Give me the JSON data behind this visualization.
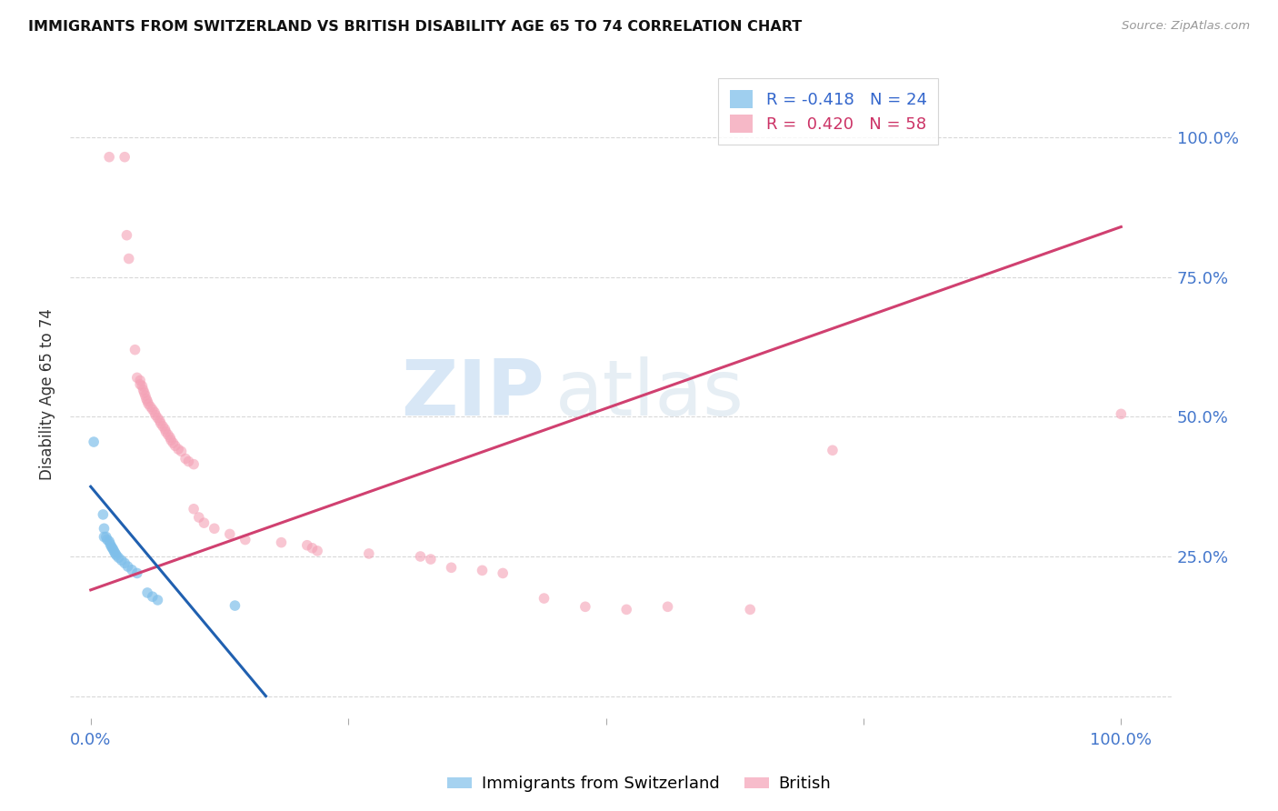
{
  "title": "IMMIGRANTS FROM SWITZERLAND VS BRITISH DISABILITY AGE 65 TO 74 CORRELATION CHART",
  "source": "Source: ZipAtlas.com",
  "ylabel": "Disability Age 65 to 74",
  "right_ytick_labels": [
    "100.0%",
    "75.0%",
    "50.0%",
    "25.0%"
  ],
  "right_ytick_positions": [
    1.0,
    0.75,
    0.5,
    0.25
  ],
  "watermark_part1": "ZIP",
  "watermark_part2": "atlas",
  "swiss_color": "#7fbfea",
  "british_color": "#f4a0b5",
  "swiss_line_color": "#2060b0",
  "british_line_color": "#d04070",
  "background_color": "#ffffff",
  "grid_color": "#d8d8d8",
  "title_color": "#111111",
  "axis_label_color": "#4477cc",
  "marker_size": 70,
  "swiss_points": [
    [
      0.003,
      0.455
    ],
    [
      0.012,
      0.325
    ],
    [
      0.013,
      0.3
    ],
    [
      0.013,
      0.285
    ],
    [
      0.015,
      0.285
    ],
    [
      0.016,
      0.28
    ],
    [
      0.018,
      0.277
    ],
    [
      0.019,
      0.272
    ],
    [
      0.02,
      0.268
    ],
    [
      0.021,
      0.265
    ],
    [
      0.022,
      0.262
    ],
    [
      0.023,
      0.258
    ],
    [
      0.024,
      0.255
    ],
    [
      0.025,
      0.252
    ],
    [
      0.027,
      0.248
    ],
    [
      0.03,
      0.243
    ],
    [
      0.033,
      0.238
    ],
    [
      0.036,
      0.232
    ],
    [
      0.04,
      0.226
    ],
    [
      0.045,
      0.22
    ],
    [
      0.055,
      0.185
    ],
    [
      0.06,
      0.178
    ],
    [
      0.065,
      0.172
    ],
    [
      0.14,
      0.162
    ]
  ],
  "british_points": [
    [
      0.018,
      0.965
    ],
    [
      0.033,
      0.965
    ],
    [
      0.035,
      0.825
    ],
    [
      0.037,
      0.783
    ],
    [
      0.043,
      0.62
    ],
    [
      0.045,
      0.57
    ],
    [
      0.048,
      0.565
    ],
    [
      0.048,
      0.558
    ],
    [
      0.05,
      0.555
    ],
    [
      0.051,
      0.548
    ],
    [
      0.052,
      0.543
    ],
    [
      0.053,
      0.538
    ],
    [
      0.054,
      0.532
    ],
    [
      0.055,
      0.528
    ],
    [
      0.056,
      0.523
    ],
    [
      0.058,
      0.518
    ],
    [
      0.06,
      0.513
    ],
    [
      0.062,
      0.508
    ],
    [
      0.063,
      0.503
    ],
    [
      0.065,
      0.498
    ],
    [
      0.067,
      0.493
    ],
    [
      0.068,
      0.488
    ],
    [
      0.07,
      0.483
    ],
    [
      0.072,
      0.478
    ],
    [
      0.073,
      0.473
    ],
    [
      0.075,
      0.468
    ],
    [
      0.077,
      0.463
    ],
    [
      0.078,
      0.458
    ],
    [
      0.08,
      0.453
    ],
    [
      0.082,
      0.448
    ],
    [
      0.085,
      0.442
    ],
    [
      0.088,
      0.438
    ],
    [
      0.092,
      0.425
    ],
    [
      0.095,
      0.42
    ],
    [
      0.1,
      0.415
    ],
    [
      0.1,
      0.335
    ],
    [
      0.105,
      0.32
    ],
    [
      0.11,
      0.31
    ],
    [
      0.12,
      0.3
    ],
    [
      0.135,
      0.29
    ],
    [
      0.15,
      0.28
    ],
    [
      0.185,
      0.275
    ],
    [
      0.21,
      0.27
    ],
    [
      0.215,
      0.265
    ],
    [
      0.22,
      0.26
    ],
    [
      0.27,
      0.255
    ],
    [
      0.32,
      0.25
    ],
    [
      0.33,
      0.245
    ],
    [
      0.35,
      0.23
    ],
    [
      0.38,
      0.225
    ],
    [
      0.4,
      0.22
    ],
    [
      0.44,
      0.175
    ],
    [
      0.48,
      0.16
    ],
    [
      0.52,
      0.155
    ],
    [
      0.56,
      0.16
    ],
    [
      0.64,
      0.155
    ],
    [
      0.72,
      0.44
    ],
    [
      1.0,
      0.505
    ]
  ],
  "swiss_line_x": [
    0.0,
    0.17
  ],
  "swiss_line_y": [
    0.375,
    0.0
  ],
  "british_line_x": [
    0.0,
    1.0
  ],
  "british_line_y": [
    0.19,
    0.84
  ],
  "xlim": [
    -0.02,
    1.05
  ],
  "ylim": [
    -0.04,
    1.12
  ],
  "xticks": [
    0.0,
    0.25,
    0.5,
    0.75,
    1.0
  ],
  "xticklabels": [
    "0.0%",
    "",
    "",
    "",
    "100.0%"
  ],
  "legend_swiss_label": "R = -0.418   N = 24",
  "legend_british_label": "R =  0.420   N = 58",
  "bottom_legend_swiss": "Immigrants from Switzerland",
  "bottom_legend_british": "British"
}
